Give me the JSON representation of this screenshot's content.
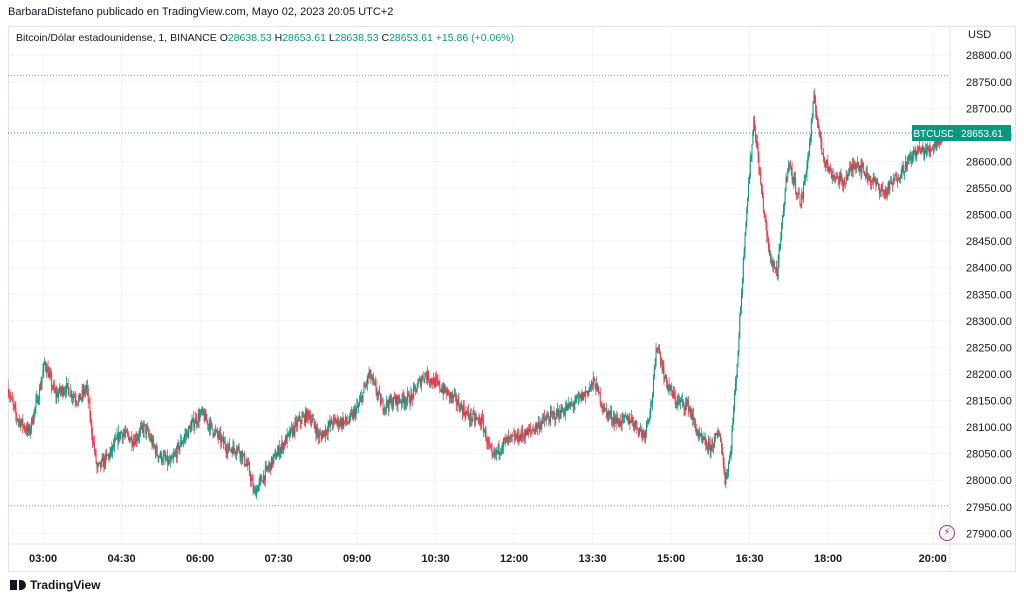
{
  "header": {
    "publisher_line": "BarbaraDistefano publicado en TradingView.com, Mayo 02, 2023 20:05 UTC+2"
  },
  "legend": {
    "symbol": "Bitcoin/Dólar estadounidense, 1, BINANCE",
    "open_label": "O",
    "open": "28638.53",
    "high_label": "H",
    "high": "28653.61",
    "low_label": "L",
    "low": "28638.53",
    "close_label": "C",
    "close": "28653.61",
    "change": "+15.86 (+0.06%)"
  },
  "brand": {
    "name": "TradingView"
  },
  "colors": {
    "up": "#089981",
    "down": "#f23645",
    "grid": "#f0f3fa",
    "axis_text": "#131722",
    "accent": "#9c27b0"
  },
  "icons": {
    "flash": "lightning-icon",
    "logo": "tradingview-logo-icon"
  },
  "chart_data": {
    "type": "candlestick",
    "symbol": "BTCUSD",
    "currency_label": "USD",
    "last_price": 28653.61,
    "last_price_label": "28653.61",
    "ylim": [
      27880,
      28840
    ],
    "y_ticks": [
      27900,
      27950,
      28000,
      28050,
      28100,
      28150,
      28200,
      28250,
      28300,
      28350,
      28400,
      28450,
      28500,
      28550,
      28600,
      28650,
      28700,
      28750,
      28800
    ],
    "y_tick_labels": [
      "27900.00",
      "27950.00",
      "28000.00",
      "28050.00",
      "28100.00",
      "28150.00",
      "28200.00",
      "28250.00",
      "28300.00",
      "28350.00",
      "28400.00",
      "28450.00",
      "28500.00",
      "28550.00",
      "28600.00",
      "28650.00",
      "28700.00",
      "28750.00",
      "28800.00"
    ],
    "x_tick_labels": [
      "03:00",
      "04:30",
      "06:00",
      "07:30",
      "09:00",
      "10:30",
      "12:00",
      "13:30",
      "15:00",
      "16:30",
      "18:00",
      "20:00"
    ],
    "x_tick_hours": [
      3,
      4.5,
      6,
      7.5,
      9,
      10.5,
      12,
      13.5,
      15,
      16.5,
      18,
      20
    ],
    "x_range_hours": [
      2.33,
      20.33
    ],
    "high_line": 28762,
    "low_line": 27952,
    "path_points": [
      [
        2.33,
        28178
      ],
      [
        2.5,
        28120
      ],
      [
        2.75,
        28090
      ],
      [
        2.95,
        28170
      ],
      [
        3.05,
        28222
      ],
      [
        3.25,
        28160
      ],
      [
        3.45,
        28175
      ],
      [
        3.7,
        28150
      ],
      [
        3.85,
        28175
      ],
      [
        3.95,
        28090
      ],
      [
        4.05,
        28020
      ],
      [
        4.3,
        28050
      ],
      [
        4.5,
        28090
      ],
      [
        4.75,
        28075
      ],
      [
        4.95,
        28100
      ],
      [
        5.2,
        28050
      ],
      [
        5.45,
        28030
      ],
      [
        5.65,
        28070
      ],
      [
        5.9,
        28110
      ],
      [
        6.05,
        28125
      ],
      [
        6.3,
        28090
      ],
      [
        6.55,
        28060
      ],
      [
        6.75,
        28060
      ],
      [
        6.95,
        28020
      ],
      [
        7.05,
        27975
      ],
      [
        7.3,
        28020
      ],
      [
        7.55,
        28060
      ],
      [
        7.9,
        28110
      ],
      [
        8.1,
        28125
      ],
      [
        8.3,
        28080
      ],
      [
        8.55,
        28110
      ],
      [
        8.85,
        28110
      ],
      [
        9.05,
        28140
      ],
      [
        9.25,
        28200
      ],
      [
        9.5,
        28140
      ],
      [
        9.75,
        28150
      ],
      [
        10.05,
        28155
      ],
      [
        10.3,
        28200
      ],
      [
        10.55,
        28180
      ],
      [
        10.9,
        28150
      ],
      [
        11.15,
        28120
      ],
      [
        11.4,
        28110
      ],
      [
        11.6,
        28040
      ],
      [
        11.8,
        28070
      ],
      [
        12.05,
        28080
      ],
      [
        12.3,
        28090
      ],
      [
        12.55,
        28110
      ],
      [
        12.85,
        28125
      ],
      [
        13.1,
        28140
      ],
      [
        13.35,
        28160
      ],
      [
        13.55,
        28185
      ],
      [
        13.75,
        28130
      ],
      [
        14.0,
        28110
      ],
      [
        14.25,
        28115
      ],
      [
        14.5,
        28085
      ],
      [
        14.65,
        28150
      ],
      [
        14.75,
        28260
      ],
      [
        14.9,
        28190
      ],
      [
        15.1,
        28150
      ],
      [
        15.35,
        28140
      ],
      [
        15.55,
        28080
      ],
      [
        15.75,
        28060
      ],
      [
        15.95,
        28090
      ],
      [
        16.05,
        28000
      ],
      [
        16.15,
        28050
      ],
      [
        16.3,
        28250
      ],
      [
        16.45,
        28500
      ],
      [
        16.6,
        28680
      ],
      [
        16.75,
        28540
      ],
      [
        16.9,
        28420
      ],
      [
        17.05,
        28390
      ],
      [
        17.25,
        28600
      ],
      [
        17.5,
        28520
      ],
      [
        17.65,
        28620
      ],
      [
        17.75,
        28720
      ],
      [
        17.9,
        28620
      ],
      [
        18.05,
        28580
      ],
      [
        18.3,
        28560
      ],
      [
        18.55,
        28600
      ],
      [
        18.8,
        28570
      ],
      [
        19.1,
        28540
      ],
      [
        19.4,
        28580
      ],
      [
        19.7,
        28620
      ],
      [
        19.95,
        28620
      ],
      [
        20.1,
        28640
      ],
      [
        20.3,
        28653.61
      ]
    ]
  }
}
